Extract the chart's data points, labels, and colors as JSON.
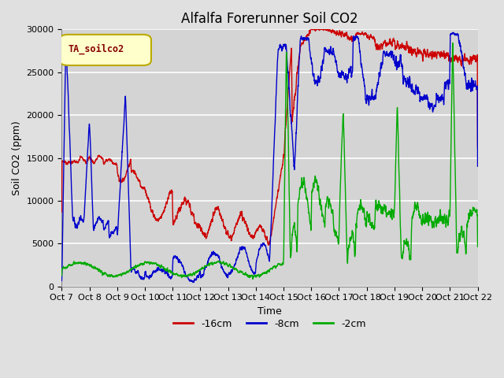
{
  "title": "Alfalfa Forerunner Soil CO2",
  "ylabel": "Soil CO2 (ppm)",
  "xlabel": "Time",
  "legend_label": "TA_soilco2",
  "series_labels": [
    "-16cm",
    "-8cm",
    "-2cm"
  ],
  "series_colors": [
    "#cc0000",
    "#0000cc",
    "#00aa00"
  ],
  "ylim": [
    0,
    30000
  ],
  "yticks": [
    0,
    5000,
    10000,
    15000,
    20000,
    25000,
    30000
  ],
  "xtick_labels": [
    "Oct 7",
    "Oct 8",
    "Oct 9",
    "Oct 10",
    "Oct 11",
    "Oct 12",
    "Oct 13",
    "Oct 14",
    "Oct 15",
    "Oct 16",
    "Oct 17",
    "Oct 18",
    "Oct 19",
    "Oct 20",
    "Oct 21",
    "Oct 22"
  ],
  "background_color": "#e0e0e0",
  "plot_bg_color": "#d4d4d4",
  "grid_color": "#ffffff",
  "title_fontsize": 12,
  "axis_fontsize": 9,
  "tick_fontsize": 8,
  "legend_box_color": "#ffffcc",
  "legend_box_edgecolor": "#bbaa00"
}
